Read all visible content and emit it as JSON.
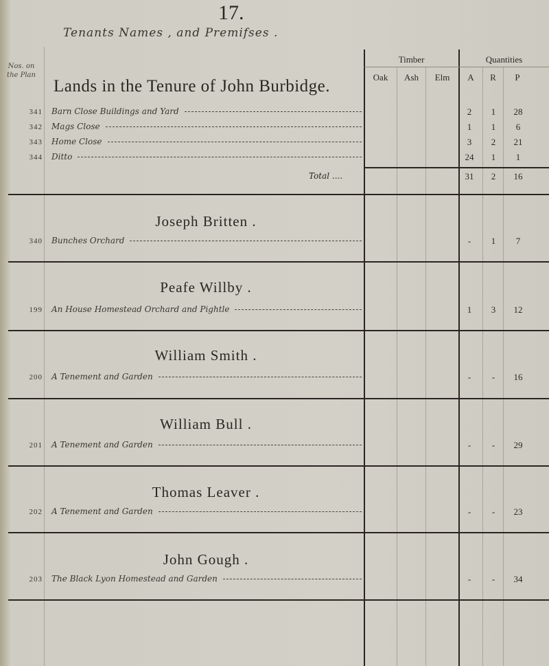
{
  "page_number": "17.",
  "subtitle": "Tenants Names , and Premifses .",
  "plan_header": "Nos. on the Plan",
  "columns": {
    "timber": "Timber",
    "quantities": "Quantities",
    "timber_sub": [
      "Oak",
      "Ash",
      "Elm"
    ],
    "quantity_sub": [
      "A",
      "R",
      "P"
    ]
  },
  "sections": [
    {
      "tenant": "Lands in the Tenure of John Burbidge.",
      "rows": [
        {
          "no": "341",
          "premises": "Barn Close Buildings and Yard",
          "A": "2",
          "R": "1",
          "P": "28"
        },
        {
          "no": "342",
          "premises": "Mags Close",
          "A": "1",
          "R": "1",
          "P": "6"
        },
        {
          "no": "343",
          "premises": "Home Close",
          "A": "3",
          "R": "2",
          "P": "21"
        },
        {
          "no": "344",
          "premises": "Ditto",
          "A": "24",
          "R": "1",
          "P": "1"
        }
      ],
      "total": {
        "label": "Total ....",
        "A": "31",
        "R": "2",
        "P": "16"
      }
    },
    {
      "tenant": "Joseph Britten .",
      "rows": [
        {
          "no": "340",
          "premises": "Bunches Orchard",
          "A": "-",
          "R": "1",
          "P": "7"
        }
      ]
    },
    {
      "tenant": "Peafe Willby .",
      "rows": [
        {
          "no": "199",
          "premises": "An House Homestead Orchard and Pightle",
          "A": "1",
          "R": "3",
          "P": "12"
        }
      ]
    },
    {
      "tenant": "William Smith .",
      "rows": [
        {
          "no": "200",
          "premises": "A Tenement and Garden",
          "A": "-",
          "R": "-",
          "P": "16"
        }
      ]
    },
    {
      "tenant": "William Bull .",
      "rows": [
        {
          "no": "201",
          "premises": "A Tenement and Garden",
          "A": "-",
          "R": "-",
          "P": "29"
        }
      ]
    },
    {
      "tenant": "Thomas Leaver .",
      "rows": [
        {
          "no": "202",
          "premises": "A Tenement and Garden",
          "A": "-",
          "R": "-",
          "P": "23"
        }
      ]
    },
    {
      "tenant": "John Gough .",
      "rows": [
        {
          "no": "203",
          "premises": "The Black Lyon Homestead and Garden",
          "A": "-",
          "R": "-",
          "P": "34"
        }
      ]
    }
  ]
}
